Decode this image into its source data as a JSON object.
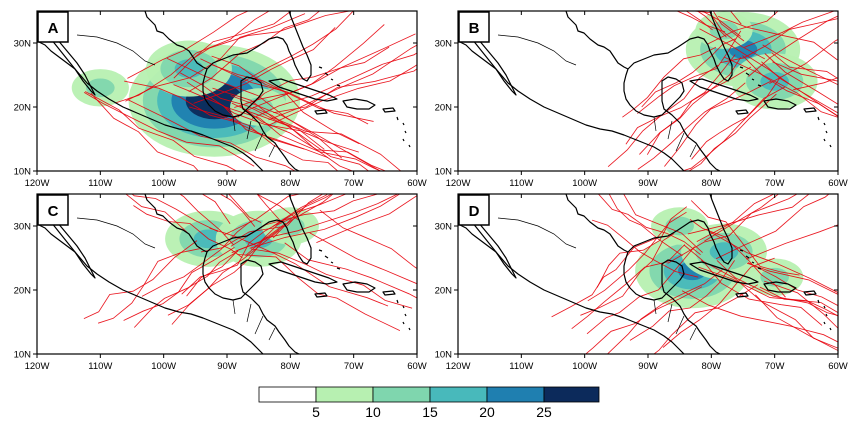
{
  "colors": {
    "track": "#e8000b",
    "density_levels": [
      "#ffffff",
      "#b7f0b1",
      "#7fd6ae",
      "#48b9bb",
      "#1f7fb0",
      "#0c2a5b"
    ]
  },
  "lon_ticks": [
    "120W",
    "110W",
    "100W",
    "90W",
    "80W",
    "70W",
    "60W"
  ],
  "lat_ticks": [
    "30N",
    "20N",
    "10N"
  ],
  "colorbar": {
    "ticks": [
      "5",
      "10",
      "15",
      "20",
      "25"
    ]
  },
  "panels": [
    {
      "label": "A",
      "cores": [
        {
          "lon": -92,
          "lat": 21,
          "peak": 6
        },
        {
          "lon": -96,
          "lat": 26,
          "peak": 3
        },
        {
          "lon": -85,
          "lat": 20,
          "peak": 2
        },
        {
          "lon": -110,
          "lat": 23,
          "peak": 2
        }
      ]
    },
    {
      "label": "B",
      "cores": [
        {
          "lon": -75,
          "lat": 29,
          "peak": 4
        },
        {
          "lon": -70,
          "lat": 24,
          "peak": 3
        },
        {
          "lon": -78,
          "lat": 32,
          "peak": 2
        }
      ]
    },
    {
      "label": "C",
      "cores": [
        {
          "lon": -93,
          "lat": 28,
          "peak": 3
        },
        {
          "lon": -85,
          "lat": 28,
          "peak": 3
        },
        {
          "lon": -80,
          "lat": 30,
          "peak": 2
        }
      ]
    },
    {
      "label": "D",
      "cores": [
        {
          "lon": -83,
          "lat": 23,
          "peak": 4
        },
        {
          "lon": -78,
          "lat": 26,
          "peak": 3
        },
        {
          "lon": -85,
          "lat": 30,
          "peak": 2
        },
        {
          "lon": -70,
          "lat": 22,
          "peak": 2
        }
      ]
    }
  ]
}
